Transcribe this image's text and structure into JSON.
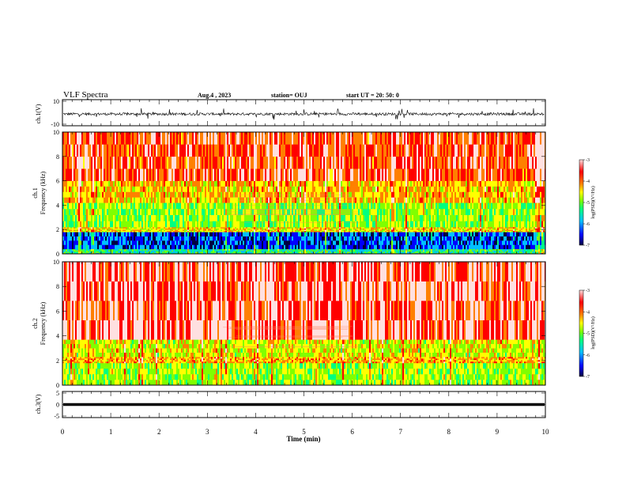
{
  "header": {
    "title": "VLF Spectra",
    "date": "Aug.4 , 2023",
    "station": "station= OUJ",
    "start": "start UT = 20: 50: 0"
  },
  "colors": {
    "scale": [
      "#000040",
      "#0000ff",
      "#00c0ff",
      "#00ff80",
      "#80ff00",
      "#ffff00",
      "#ff8000",
      "#ff0000",
      "#ffe0e0"
    ]
  },
  "chart_data": [
    {
      "type": "line",
      "panel": "ch1-waveform",
      "ylabel": "ch.1(V)",
      "ylim": [
        -10,
        10
      ],
      "ytick_labels": [
        "10",
        "-10"
      ],
      "xlim": [
        0,
        10
      ],
      "baseline": -1,
      "typical_noise": 2
    },
    {
      "type": "heatmap",
      "panel": "ch1-spectrogram",
      "ylabel_channel": "ch.1",
      "ylabel": "Frequency (kHz)",
      "ylim": [
        0,
        10
      ],
      "ytick_labels": [
        "0",
        "2",
        "4",
        "6",
        "8",
        "10"
      ],
      "xlim": [
        0,
        10
      ],
      "colorbar": {
        "label": "log(PSD)(V²/Hz)",
        "tick_labels": [
          "-3",
          "-4",
          "-5",
          "-6",
          "-7"
        ],
        "range": [
          -7,
          -3
        ]
      },
      "bands_khz_log_psd": [
        {
          "from": 0,
          "to": 0.4,
          "value": -5.5
        },
        {
          "from": 0.4,
          "to": 1.8,
          "value": -6.3
        },
        {
          "from": 1.8,
          "to": 2.2,
          "value": -4.5
        },
        {
          "from": 2.2,
          "to": 4.2,
          "value": -5.0
        },
        {
          "from": 4.2,
          "to": 6.0,
          "value": -4.4
        },
        {
          "from": 6.0,
          "to": 10.0,
          "value": -3.8
        }
      ]
    },
    {
      "type": "heatmap",
      "panel": "ch2-spectrogram",
      "ylabel_channel": "ch.2",
      "ylabel": "Frequency (kHz)",
      "ylim": [
        0,
        10
      ],
      "ytick_labels": [
        "0",
        "2",
        "4",
        "6",
        "8",
        "10"
      ],
      "xlim": [
        0,
        10
      ],
      "colorbar": {
        "label": "log(PSD)(V²/Hz)",
        "tick_labels": [
          "-3",
          "-4",
          "-5",
          "-6",
          "-7"
        ],
        "range": [
          -7,
          -3
        ]
      },
      "bands_khz_log_psd": [
        {
          "from": 0,
          "to": 1.8,
          "value": -4.9
        },
        {
          "from": 1.8,
          "to": 2.3,
          "value": -4.3
        },
        {
          "from": 2.3,
          "to": 3.7,
          "value": -4.7
        },
        {
          "from": 3.7,
          "to": 10.0,
          "value": -3.6
        }
      ]
    },
    {
      "type": "line",
      "panel": "ch3-waveform",
      "ylabel": "ch.3(V)",
      "ylim": [
        -5,
        5
      ],
      "ytick_labels": [
        "5",
        "0",
        "-5"
      ],
      "xlim": [
        0,
        10
      ],
      "baseline": 0,
      "xlabel": "Time (min)",
      "xtick_labels": [
        "0",
        "1",
        "2",
        "3",
        "4",
        "5",
        "6",
        "7",
        "8",
        "9",
        "10"
      ]
    }
  ]
}
